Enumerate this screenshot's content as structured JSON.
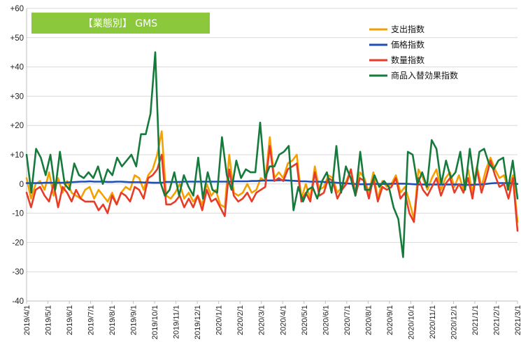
{
  "chart_data": {
    "type": "line",
    "title": "【業態別】 GMS",
    "ylim": [
      -40,
      60
    ],
    "y_ticks": [
      {
        "value": 60,
        "label": "+60"
      },
      {
        "value": 50,
        "label": "+50"
      },
      {
        "value": 40,
        "label": "+40"
      },
      {
        "value": 30,
        "label": "+30"
      },
      {
        "value": 20,
        "label": "+20"
      },
      {
        "value": 10,
        "label": "+10"
      },
      {
        "value": 0,
        "label": "0"
      },
      {
        "value": -10,
        "label": "-10"
      },
      {
        "value": -20,
        "label": "-20"
      },
      {
        "value": -30,
        "label": "-30"
      },
      {
        "value": -40,
        "label": "-40"
      }
    ],
    "x_ticks": [
      "2019/4/1",
      "2019/5/1",
      "2019/6/1",
      "2019/7/1",
      "2019/8/1",
      "2019/9/1",
      "2019/10/1",
      "2019/11/1",
      "2019/12/1",
      "2020/1/1",
      "2020/2/1",
      "2020/3/1",
      "2020/4/1",
      "2020/5/1",
      "2020/6/1",
      "2020/7/1",
      "2020/8/1",
      "2020/9/1",
      "2020/10/1",
      "2020/11/1",
      "2020/12/1",
      "2021/1/1",
      "2021/2/1",
      "2021/3/1"
    ],
    "grid": "horizontal",
    "legend_position": "top-right",
    "series": [
      {
        "name": "支出指数",
        "color": "#F5A000",
        "values": [
          2,
          -5,
          0,
          1,
          -2,
          4,
          -4,
          2,
          -3,
          1,
          -3,
          -4,
          -5,
          -2,
          -1,
          -5,
          -2,
          -4,
          -6,
          -3,
          -7,
          -3,
          -1,
          -2,
          3,
          2,
          -2,
          3,
          5,
          10,
          18,
          -4,
          -5,
          -3,
          0,
          -5,
          -3,
          -6,
          -4,
          -7,
          0,
          -4,
          -2,
          -7,
          -8,
          10,
          -3,
          -4,
          -3,
          0,
          -3,
          -2,
          2,
          1,
          16,
          2,
          4,
          2,
          7,
          8,
          10,
          -5,
          0,
          -5,
          6,
          -2,
          -1,
          3,
          2,
          -3,
          -1,
          1,
          5,
          -3,
          4,
          2,
          -3,
          4,
          -5,
          1,
          -1,
          0,
          3,
          -3,
          -1,
          -6,
          -12,
          5,
          2,
          -2,
          2,
          5,
          -2,
          2,
          4,
          -1,
          3,
          -2,
          5,
          -3,
          6,
          -1,
          5,
          9,
          5,
          2,
          3,
          -2,
          3,
          -13
        ]
      },
      {
        "name": "価格指数",
        "color": "#1F4FB5",
        "values": [
          0.3,
          0.3,
          0.3,
          0.3,
          0.4,
          0.4,
          0.4,
          0.4,
          0.4,
          0.5,
          0.6,
          0.7,
          0.8,
          0.8,
          0.9,
          0.8,
          0.8,
          0.8,
          0.7,
          0.7,
          0.8,
          0.8,
          0.7,
          0.6,
          0.6,
          0.6,
          0.5,
          0.5,
          0.4,
          0.4,
          0.4,
          0.7,
          0.7,
          0.7,
          0.7,
          0.8,
          0.8,
          0.8,
          0.8,
          0.8,
          0.8,
          0.8,
          0.8,
          0.8,
          0.8,
          0.8,
          0.9,
          0.9,
          0.9,
          0.9,
          1,
          1,
          1.1,
          1.2,
          1.2,
          1.2,
          1.3,
          1.3,
          1.2,
          1.1,
          1,
          0.9,
          0.9,
          0.8,
          0.8,
          0.8,
          0.7,
          0.6,
          0.5,
          0.4,
          0.3,
          0.2,
          0.1,
          0,
          -0.1,
          -0.1,
          -0.1,
          0,
          0,
          0,
          0,
          0.1,
          0.1,
          0.1,
          0.1,
          0,
          -0.1,
          -0.2,
          -0.2,
          -0.2,
          -0.2,
          -0.2,
          -0.2,
          -0.2,
          -0.2,
          -0.2,
          -0.2,
          -0.3,
          -0.3,
          -0.3,
          -0.2,
          -0.2,
          0,
          0.2,
          0.3,
          0.3,
          0.3,
          0.3,
          0.2,
          0
        ]
      },
      {
        "name": "数量指数",
        "color": "#E63C28",
        "values": [
          -3,
          -8,
          -2,
          -1,
          -4,
          -6,
          0,
          -8,
          -1,
          -3,
          -6,
          -2,
          -5,
          -6,
          -6,
          -6,
          -9,
          -7,
          -10,
          -4,
          -7,
          -3,
          -4,
          -6,
          -1,
          -2,
          -5,
          2,
          3,
          5,
          10,
          -7,
          -7,
          -6,
          -4,
          -8,
          -5,
          -8,
          -4,
          -9,
          -2,
          -6,
          -5,
          -8,
          -11,
          5,
          -4,
          -6,
          -5,
          -3,
          -6,
          -3,
          -2,
          -1,
          13,
          1,
          2,
          1,
          5,
          6,
          7,
          -6,
          -3,
          -6,
          4,
          -4,
          -3,
          2,
          1,
          -5,
          -2,
          0,
          5,
          -4,
          2,
          1,
          -5,
          2,
          -6,
          -1,
          -2,
          -1,
          2,
          -5,
          -3,
          -10,
          -13,
          2,
          -2,
          -4,
          -1,
          2,
          -4,
          0,
          2,
          -3,
          0,
          -3,
          2,
          -5,
          5,
          -3,
          2,
          8,
          3,
          -1,
          0,
          -5,
          2,
          -16
        ]
      },
      {
        "name": "商品入替効果指数",
        "color": "#167A3C",
        "values": [
          10,
          -3,
          12,
          9,
          3,
          10,
          -2,
          11,
          0,
          -2,
          7,
          3,
          2,
          4,
          2,
          6,
          0,
          5,
          3,
          9,
          6,
          8,
          10,
          6,
          17,
          17,
          24,
          45,
          1,
          -4,
          -2,
          4,
          -4,
          3,
          -1,
          -4,
          9,
          -5,
          4,
          -2,
          -3,
          16,
          3,
          -2,
          8,
          2,
          5,
          4,
          4,
          21,
          2,
          6,
          6,
          10,
          11,
          13,
          -9,
          -1,
          -6,
          -2,
          -1,
          -5,
          1,
          4,
          -3,
          13,
          -3,
          6,
          2,
          -4,
          11,
          -2,
          -2,
          3,
          -1,
          1,
          -1,
          -8,
          -12,
          -25,
          11,
          10,
          0,
          4,
          -1,
          15,
          12,
          0,
          8,
          2,
          4,
          11,
          -2,
          12,
          0,
          11,
          12,
          7,
          5,
          8,
          9,
          -2,
          8,
          -5
        ]
      }
    ]
  }
}
